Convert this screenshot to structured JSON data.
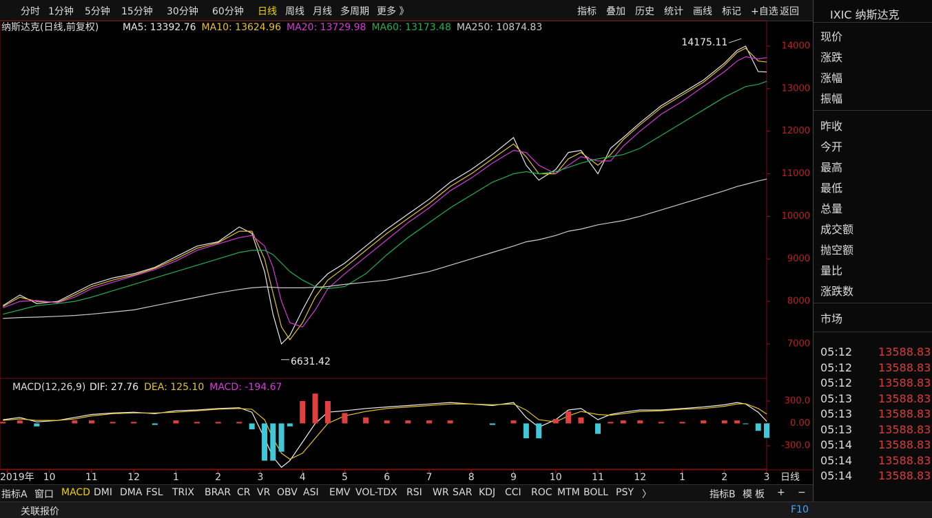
{
  "toolbar": {
    "left": [
      "分时",
      "1分钟",
      "5分钟",
      "15分钟",
      "30分钟",
      "60分钟",
      "日线",
      "周线",
      "月线",
      "多周期",
      "更多 》"
    ],
    "active": 6,
    "right": [
      "指标",
      "叠加",
      "历史",
      "统计",
      "画线",
      "标记",
      "+自选",
      "返回"
    ]
  },
  "sidebar": {
    "title": "IXIC 纳斯达克",
    "fields": [
      "现价",
      "涨跌",
      "涨幅",
      "振幅",
      "昨收",
      "今开",
      "最高",
      "最低",
      "总量",
      "成交额",
      "抛空额",
      "量比",
      "涨跌数"
    ],
    "market": "市场",
    "ticks": [
      [
        "05:12",
        13588.83
      ],
      [
        "05:12",
        13588.83
      ],
      [
        "05:12",
        13588.83
      ],
      [
        "05:13",
        13588.83
      ],
      [
        "05:13",
        13588.83
      ],
      [
        "05:13",
        13588.83
      ],
      [
        "05:14",
        13588.83
      ],
      [
        "05:14",
        13588.83
      ],
      [
        "05:14",
        13588.83
      ]
    ]
  },
  "tabs": {
    "left": [
      "指标A",
      "窗口",
      "MACD",
      "DMI",
      "DMA",
      "FSL",
      "TRIX",
      "BRAR",
      "CR",
      "VR",
      "OBV",
      "ASI",
      "EMV",
      "VOL-TDX",
      "RSI",
      "WR",
      "SAR",
      "KDJ",
      "CCI",
      "ROC",
      "MTM",
      "BOLL",
      "PSY",
      "〉"
    ],
    "active": 2,
    "right": [
      "指标B",
      "模",
      "板",
      "+",
      "−"
    ]
  },
  "status": {
    "left": "关联报价",
    "right": "F10"
  },
  "chart_data": [
    {
      "type": "line",
      "title": "纳斯达克(日线,前复权)",
      "x": [
        8.9,
        9.3,
        9.7,
        10.2,
        10.6,
        11.0,
        11.5,
        12.0,
        12.5,
        13.0,
        13.5,
        14.0,
        14.5,
        14.8,
        15.1,
        15.3,
        15.5,
        15.7,
        16.0,
        16.3,
        16.6,
        17.0,
        17.5,
        18.0,
        18.5,
        19.0,
        19.5,
        20.0,
        20.5,
        21.0,
        21.3,
        21.6,
        22.0,
        22.3,
        22.6,
        23.0,
        23.3,
        23.6,
        24.0,
        24.5,
        25.0,
        25.5,
        26.0,
        26.3,
        26.5,
        26.8,
        27.0
      ],
      "xlim": [
        8.83,
        27.0
      ],
      "ylim": [
        6224,
        14275
      ],
      "yticks": [
        7000,
        8000,
        9000,
        10000,
        11000,
        12000,
        13000,
        14000
      ],
      "series": [
        {
          "name": "MA5: 13392.76",
          "color": "#e8e8e8",
          "values": [
            7900,
            8150,
            7950,
            8000,
            8200,
            8400,
            8550,
            8650,
            8800,
            9050,
            9300,
            9400,
            9750,
            9600,
            8700,
            7700,
            7000,
            7200,
            7800,
            8350,
            8650,
            8900,
            9300,
            9700,
            10050,
            10400,
            10800,
            11100,
            11450,
            11850,
            11200,
            10850,
            11100,
            11500,
            11550,
            11000,
            11600,
            11850,
            12200,
            12600,
            12900,
            13200,
            13600,
            13900,
            14000,
            13400,
            13393
          ]
        },
        {
          "name": "MA10: 13624.96",
          "color": "#e6c229",
          "values": [
            7880,
            8100,
            8000,
            7980,
            8150,
            8350,
            8500,
            8620,
            8780,
            9000,
            9250,
            9380,
            9650,
            9650,
            9000,
            8200,
            7400,
            7100,
            7500,
            8100,
            8500,
            8800,
            9200,
            9600,
            9950,
            10300,
            10700,
            11000,
            11350,
            11700,
            11400,
            11000,
            11000,
            11350,
            11500,
            11200,
            11450,
            11800,
            12150,
            12550,
            12850,
            13150,
            13550,
            13850,
            13950,
            13650,
            13625
          ]
        },
        {
          "name": "MA20: 13729.98",
          "color": "#d63bd6",
          "values": [
            7850,
            8000,
            8020,
            7970,
            8100,
            8300,
            8450,
            8600,
            8750,
            8950,
            9200,
            9350,
            9500,
            9550,
            9300,
            8800,
            8000,
            7500,
            7400,
            7800,
            8300,
            8650,
            9050,
            9450,
            9850,
            10200,
            10600,
            10900,
            11250,
            11550,
            11500,
            11200,
            11000,
            11200,
            11400,
            11300,
            11300,
            11650,
            12000,
            12400,
            12700,
            13050,
            13400,
            13650,
            13750,
            13700,
            13730
          ]
        },
        {
          "name": "MA60: 13173.48",
          "color": "#22b14c",
          "values": [
            7700,
            7800,
            7900,
            7950,
            8000,
            8100,
            8250,
            8400,
            8550,
            8700,
            8850,
            9000,
            9150,
            9200,
            9200,
            9100,
            8900,
            8700,
            8500,
            8350,
            8300,
            8350,
            8650,
            9100,
            9500,
            9850,
            10200,
            10500,
            10800,
            11000,
            11050,
            11000,
            11050,
            11150,
            11250,
            11350,
            11400,
            11450,
            11600,
            11900,
            12200,
            12500,
            12800,
            12950,
            13050,
            13100,
            13173
          ]
        },
        {
          "name": "MA250: 10874.83",
          "color": "#cccccc",
          "values": [
            7600,
            7620,
            7630,
            7650,
            7670,
            7700,
            7750,
            7800,
            7900,
            8000,
            8100,
            8200,
            8280,
            8320,
            8340,
            8330,
            8320,
            8320,
            8320,
            8330,
            8350,
            8400,
            8450,
            8500,
            8600,
            8700,
            8850,
            9000,
            9150,
            9300,
            9400,
            9450,
            9550,
            9650,
            9700,
            9800,
            9850,
            9900,
            10000,
            10150,
            10300,
            10450,
            10600,
            10700,
            10750,
            10830,
            10875
          ]
        }
      ],
      "annotations": [
        {
          "x": 26.4,
          "value": 14175.11
        },
        {
          "x": 15.49,
          "value": 6631.42
        }
      ]
    },
    {
      "type": "macd",
      "title": "MACD(12,26,9)",
      "x": [
        8.9,
        9.3,
        9.7,
        10.2,
        10.6,
        11.0,
        11.5,
        12.0,
        12.5,
        13.0,
        13.5,
        14.0,
        14.5,
        14.8,
        15.1,
        15.3,
        15.5,
        15.7,
        16.0,
        16.3,
        16.6,
        17.0,
        17.5,
        18.0,
        18.5,
        19.0,
        19.5,
        20.0,
        20.5,
        21.0,
        21.3,
        21.6,
        22.0,
        22.3,
        22.6,
        23.0,
        23.3,
        23.6,
        24.0,
        24.5,
        25.0,
        25.5,
        26.0,
        26.3,
        26.5,
        26.8,
        27.0
      ],
      "xlim": [
        8.83,
        27.0
      ],
      "ylim": [
        -614,
        586
      ],
      "yticks": [
        {
          "value": 300,
          "label": "300.0"
        },
        {
          "value": 0,
          "label": "0.00"
        },
        {
          "value": -300,
          "label": "-300.0"
        }
      ],
      "xticks": [
        {
          "value": 9,
          "label": "2019年"
        },
        10,
        11,
        12,
        {
          "value": 13,
          "label": "1"
        },
        {
          "value": 14,
          "label": "2"
        },
        {
          "value": 15,
          "label": "3"
        },
        {
          "value": 16,
          "label": "4"
        },
        {
          "value": 17,
          "label": "5"
        },
        {
          "value": 18,
          "label": "6"
        },
        {
          "value": 19,
          "label": "7"
        },
        {
          "value": 20,
          "label": "8"
        },
        {
          "value": 21,
          "label": "9"
        },
        {
          "value": 22,
          "label": "10"
        },
        {
          "value": 23,
          "label": "11"
        },
        {
          "value": 24,
          "label": "12"
        },
        {
          "value": 25,
          "label": "1"
        },
        {
          "value": 26,
          "label": "2"
        },
        {
          "value": 27,
          "label": "3"
        }
      ],
      "period_label": "日线",
      "series": [
        {
          "name": "DIF: 27.76",
          "color": "#f0f0f0",
          "values": [
            50,
            80,
            20,
            40,
            80,
            120,
            140,
            150,
            130,
            170,
            180,
            200,
            210,
            150,
            -200,
            -450,
            -590,
            -500,
            -250,
            0,
            150,
            170,
            200,
            220,
            240,
            260,
            280,
            260,
            240,
            280,
            80,
            -50,
            50,
            180,
            200,
            50,
            120,
            150,
            180,
            180,
            200,
            220,
            250,
            280,
            260,
            150,
            27.76
          ]
        },
        {
          "name": "DEA: 125.10",
          "color": "#e6c229",
          "values": [
            40,
            60,
            40,
            40,
            60,
            100,
            130,
            140,
            140,
            150,
            170,
            190,
            200,
            190,
            50,
            -200,
            -400,
            -480,
            -400,
            -200,
            0,
            100,
            160,
            200,
            220,
            240,
            260,
            260,
            250,
            260,
            180,
            50,
            20,
            100,
            160,
            120,
            110,
            130,
            160,
            170,
            190,
            200,
            230,
            260,
            265,
            200,
            125.1
          ]
        },
        {
          "name": "MACD: -194.67",
          "color": "#d63bd6",
          "up": "#e04040",
          "down": "#40c8d8",
          "values": [
            20,
            40,
            -40,
            0,
            40,
            40,
            20,
            20,
            -20,
            40,
            20,
            20,
            20,
            -80,
            -500,
            -500,
            -380,
            -40,
            300,
            400,
            300,
            140,
            80,
            40,
            40,
            40,
            40,
            0,
            -20,
            40,
            -200,
            -200,
            60,
            160,
            80,
            -140,
            20,
            40,
            40,
            20,
            20,
            40,
            40,
            40,
            -10,
            -100,
            -194.67
          ]
        }
      ]
    }
  ]
}
